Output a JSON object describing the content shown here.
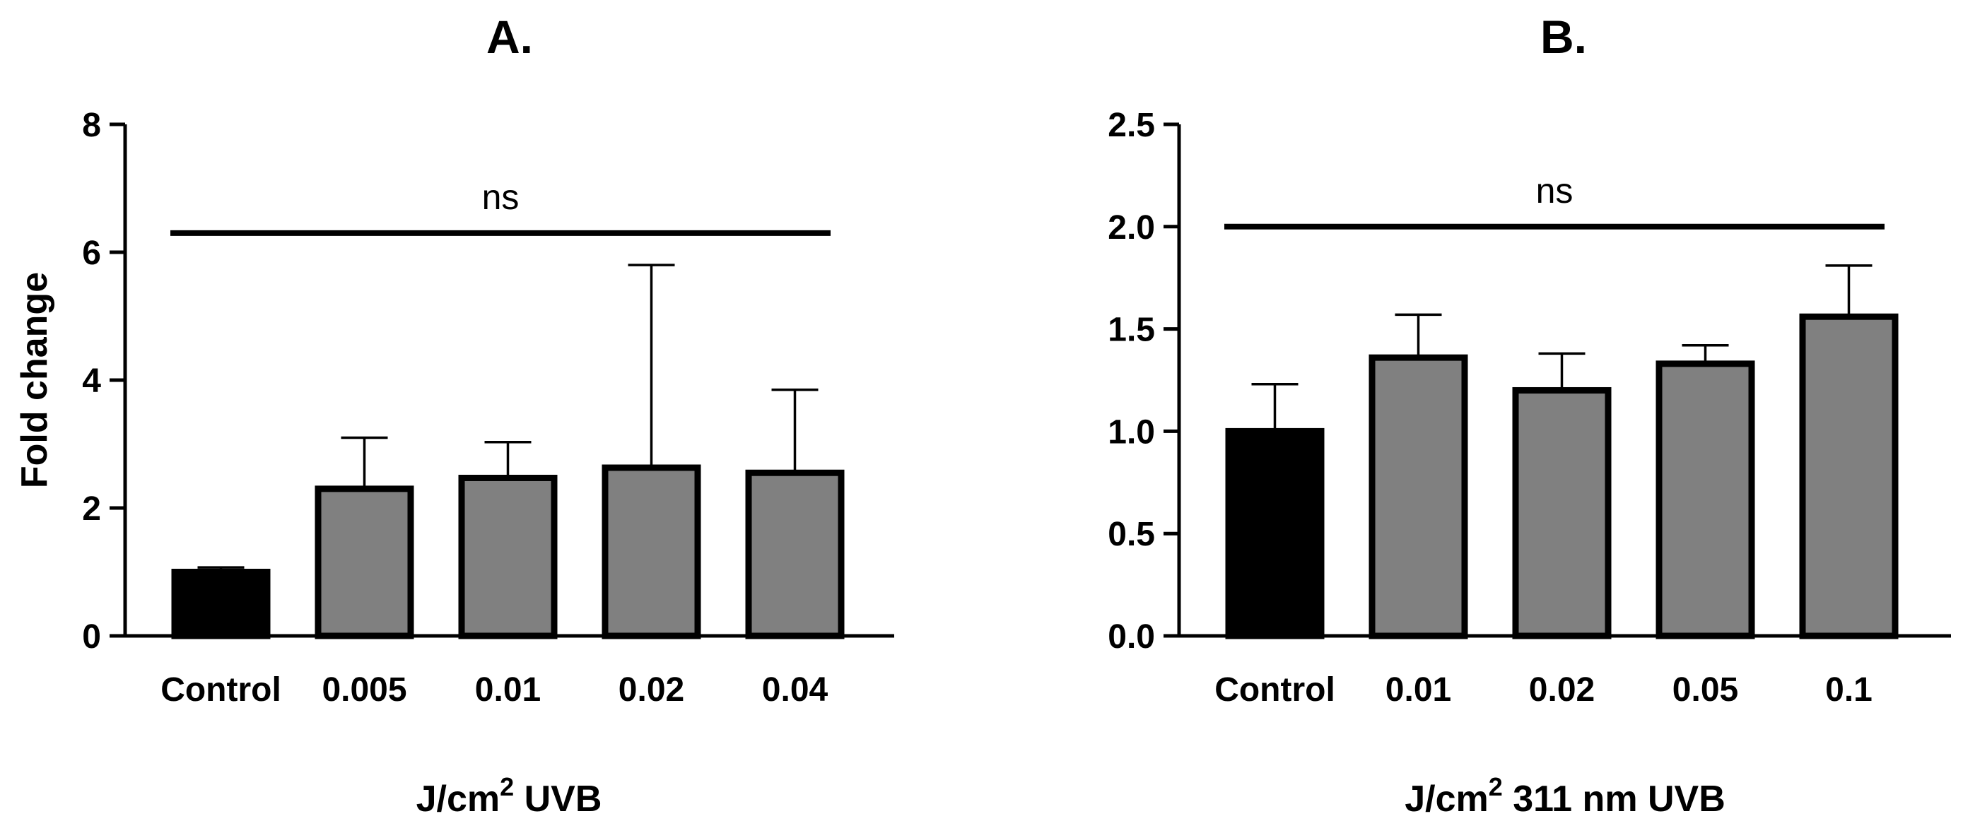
{
  "chart_data": [
    {
      "type": "bar",
      "title": "A.",
      "xlabel": "J/cm",
      "xlabel_sup": "2",
      "xlabel_suffix": " UVB",
      "ylabel": "Fold change",
      "ylim": [
        0,
        8
      ],
      "yticks": [
        0,
        2,
        4,
        6,
        8
      ],
      "ytick_labels": [
        "0",
        "2",
        "4",
        "6",
        "8"
      ],
      "categories": [
        "Control",
        "0.005",
        "0.01",
        "0.02",
        "0.04"
      ],
      "values": [
        1.0,
        2.3,
        2.47,
        2.63,
        2.55
      ],
      "errors": [
        0.07,
        0.8,
        0.56,
        3.17,
        1.3
      ],
      "colors": [
        "#000000",
        "#808080",
        "#808080",
        "#808080",
        "#808080"
      ],
      "significance": {
        "label": "ns",
        "from": 0,
        "to": 4,
        "y": 6.3
      }
    },
    {
      "type": "bar",
      "title": "B.",
      "xlabel": "J/cm",
      "xlabel_sup": "2",
      "xlabel_suffix": " 311 nm UVB",
      "ylabel": "",
      "ylim": [
        0,
        2.5
      ],
      "yticks": [
        0,
        0.5,
        1.0,
        1.5,
        2.0,
        2.5
      ],
      "ytick_labels": [
        "0.0",
        "0.5",
        "1.0",
        "1.5",
        "2.0",
        "2.5"
      ],
      "categories": [
        "Control",
        "0.01",
        "0.02",
        "0.05",
        "0.1"
      ],
      "values": [
        1.0,
        1.36,
        1.2,
        1.33,
        1.56
      ],
      "errors": [
        0.23,
        0.21,
        0.18,
        0.09,
        0.25
      ],
      "colors": [
        "#000000",
        "#808080",
        "#808080",
        "#808080",
        "#808080"
      ],
      "significance": {
        "label": "ns",
        "from": 0,
        "to": 4,
        "y": 2.0
      }
    }
  ]
}
